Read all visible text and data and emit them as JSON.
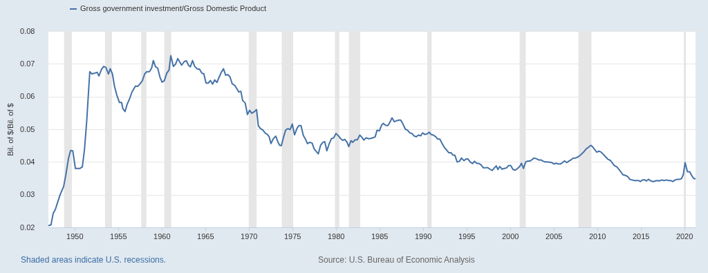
{
  "chart_data": {
    "type": "line",
    "ylabel": "Bil. of $/Bil. of $",
    "annotations": [
      "Shaded areas indicate U.S. recessions.",
      "Source: U.S. Bureau of Economic Analysis"
    ],
    "legend": "top left",
    "grid": "y",
    "line_style": "solid",
    "xlim": [
      1947,
      2021.3
    ],
    "xticks": [
      1950,
      1955,
      1960,
      1965,
      1970,
      1975,
      1980,
      1985,
      1990,
      1995,
      2000,
      2005,
      2010,
      2015,
      2020
    ],
    "ylim": [
      0.02,
      0.08
    ],
    "yticks": [
      0.02,
      0.03,
      0.04,
      0.05,
      0.06,
      0.07,
      0.08
    ],
    "bands": [
      {
        "axis": "x",
        "from": 1948.8,
        "to": 1949.7,
        "color": "#e6e6e6"
      },
      {
        "axis": "x",
        "from": 1953.5,
        "to": 1954.3,
        "color": "#e6e6e6"
      },
      {
        "axis": "x",
        "from": 1957.65,
        "to": 1958.25,
        "color": "#e6e6e6"
      },
      {
        "axis": "x",
        "from": 1960.3,
        "to": 1961.1,
        "color": "#e6e6e6"
      },
      {
        "axis": "x",
        "from": 1970.0,
        "to": 1970.9,
        "color": "#e6e6e6"
      },
      {
        "axis": "x",
        "from": 1973.8,
        "to": 1975.1,
        "color": "#e6e6e6"
      },
      {
        "axis": "x",
        "from": 1979.9,
        "to": 1980.4,
        "color": "#e6e6e6"
      },
      {
        "axis": "x",
        "from": 1981.5,
        "to": 1982.8,
        "color": "#e6e6e6"
      },
      {
        "axis": "x",
        "from": 1990.5,
        "to": 1991.0,
        "color": "#e6e6e6"
      },
      {
        "axis": "x",
        "from": 2001.1,
        "to": 2001.8,
        "color": "#e6e6e6"
      },
      {
        "axis": "x",
        "from": 2007.85,
        "to": 2009.35,
        "color": "#e6e6e6"
      },
      {
        "axis": "x",
        "from": 2019.95,
        "to": 2020.2,
        "color": "#e6e6e6"
      }
    ],
    "series": [
      {
        "name": "Gross government investment/Gross Domestic Product",
        "color": "#4572a7",
        "x": [
          1947.0,
          1947.3,
          1947.55,
          1947.8,
          1948.1,
          1948.35,
          1948.75,
          1949.0,
          1949.3,
          1949.55,
          1949.8,
          1950.1,
          1950.35,
          1950.6,
          1950.9,
          1951.15,
          1951.4,
          1951.75,
          1952.0,
          1952.35,
          1952.6,
          1952.8,
          1953.1,
          1953.35,
          1953.6,
          1953.9,
          1954.1,
          1954.35,
          1954.6,
          1954.85,
          1955.15,
          1955.4,
          1955.55,
          1955.8,
          1956.05,
          1956.35,
          1956.6,
          1957.0,
          1957.25,
          1957.5,
          1957.8,
          1958.05,
          1958.3,
          1958.6,
          1958.85,
          1959.05,
          1959.3,
          1959.55,
          1959.8,
          1960.05,
          1960.3,
          1960.6,
          1960.85,
          1961.05,
          1961.35,
          1961.6,
          1961.85,
          1962.1,
          1962.3,
          1962.6,
          1962.85,
          1963.1,
          1963.3,
          1963.55,
          1963.8,
          1964.1,
          1964.35,
          1964.6,
          1964.85,
          1965.1,
          1965.35,
          1965.6,
          1965.85,
          1966.1,
          1966.35,
          1966.6,
          1966.85,
          1967.1,
          1967.35,
          1967.6,
          1967.85,
          1968.1,
          1968.4,
          1968.65,
          1968.85,
          1969.1,
          1969.3,
          1969.6,
          1969.85,
          1970.1,
          1970.35,
          1970.6,
          1970.9,
          1971.1,
          1971.35,
          1971.6,
          1971.9,
          1972.15,
          1972.35,
          1972.55,
          1972.8,
          1973.1,
          1973.35,
          1973.55,
          1973.75,
          1974.0,
          1974.23,
          1974.5,
          1974.76,
          1975.0,
          1975.26,
          1975.53,
          1975.74,
          1976.0,
          1976.27,
          1976.53,
          1976.74,
          1977.0,
          1977.27,
          1977.51,
          1977.78,
          1977.99,
          1978.25,
          1978.52,
          1978.73,
          1978.97,
          1979.23,
          1979.49,
          1979.76,
          1980.02,
          1980.29,
          1980.55,
          1980.82,
          1981.03,
          1981.29,
          1981.48,
          1981.74,
          1981.95,
          1982.22,
          1982.48,
          1982.75,
          1983.01,
          1983.22,
          1983.49,
          1983.75,
          1984.01,
          1984.28,
          1984.52,
          1984.73,
          1985.0,
          1985.26,
          1985.45,
          1985.71,
          1985.97,
          1986.19,
          1986.45,
          1986.71,
          1986.98,
          1987.24,
          1987.45,
          1987.71,
          1987.98,
          1988.24,
          1988.48,
          1988.75,
          1988.96,
          1989.22,
          1989.49,
          1989.75,
          1989.96,
          1990.23,
          1990.49,
          1990.73,
          1990.94,
          1991.2,
          1991.47,
          1991.68,
          1991.94,
          1992.21,
          1992.47,
          1992.71,
          1992.98,
          1993.24,
          1993.45,
          1993.66,
          1993.93,
          1994.19,
          1994.43,
          1994.7,
          1994.96,
          1995.17,
          1995.43,
          1995.7,
          1995.91,
          1996.18,
          1996.44,
          1996.68,
          1996.94,
          1997.21,
          1997.42,
          1997.69,
          1997.95,
          1998.21,
          1998.42,
          1998.61,
          1998.82,
          1999.08,
          1999.34,
          1999.61,
          1999.82,
          2000.08,
          2000.34,
          2000.6,
          2000.87,
          2001.13,
          2001.31,
          2001.55,
          2001.79,
          2002.05,
          2002.31,
          2002.52,
          2002.76,
          2003.02,
          2003.29,
          2003.55,
          2003.76,
          2004.02,
          2004.28,
          2004.55,
          2004.81,
          2005.02,
          2005.28,
          2005.55,
          2005.81,
          2006.02,
          2006.25,
          2006.52,
          2006.78,
          2006.99,
          2007.25,
          2007.52,
          2007.78,
          2008.04,
          2008.28,
          2008.54,
          2008.75,
          2009.01,
          2009.28,
          2009.49,
          2009.75,
          2009.96,
          2010.22,
          2010.46,
          2010.72,
          2010.99,
          2011.25,
          2011.51,
          2011.72,
          2011.98,
          2012.25,
          2012.51,
          2012.77,
          2012.96,
          2013.22,
          2013.48,
          2013.75,
          2014.01,
          2014.27,
          2014.53,
          2014.8,
          2014.95,
          2015.22,
          2015.48,
          2015.66,
          2015.9,
          2016.16,
          2016.43,
          2016.69,
          2016.95,
          2017.16,
          2017.42,
          2017.69,
          2017.95,
          2018.21,
          2018.48,
          2018.69,
          2018.95,
          2019.21,
          2019.47,
          2019.68,
          2019.89,
          2020.1,
          2020.37,
          2020.63,
          2020.89,
          2021.1,
          2021.3
        ],
        "values": [
          0.0205,
          0.0208,
          0.0243,
          0.0255,
          0.028,
          0.03,
          0.0325,
          0.036,
          0.041,
          0.0435,
          0.0434,
          0.038,
          0.038,
          0.038,
          0.0385,
          0.044,
          0.0525,
          0.0676,
          0.0669,
          0.0672,
          0.0674,
          0.0663,
          0.0683,
          0.0692,
          0.0689,
          0.0669,
          0.0685,
          0.0669,
          0.063,
          0.0605,
          0.0582,
          0.0582,
          0.0563,
          0.0554,
          0.0577,
          0.0595,
          0.0614,
          0.0632,
          0.0631,
          0.0638,
          0.0649,
          0.0669,
          0.0676,
          0.0676,
          0.0687,
          0.071,
          0.0691,
          0.0687,
          0.066,
          0.0644,
          0.0648,
          0.0672,
          0.0681,
          0.0725,
          0.0692,
          0.0699,
          0.0716,
          0.0705,
          0.0696,
          0.0707,
          0.0709,
          0.0695,
          0.0691,
          0.071,
          0.0692,
          0.0684,
          0.0684,
          0.0672,
          0.0669,
          0.0641,
          0.0641,
          0.0649,
          0.0638,
          0.0651,
          0.0643,
          0.0659,
          0.0674,
          0.0685,
          0.0665,
          0.0667,
          0.066,
          0.0639,
          0.0634,
          0.0623,
          0.0614,
          0.0616,
          0.0588,
          0.058,
          0.0545,
          0.0558,
          0.0549,
          0.0553,
          0.056,
          0.0511,
          0.0502,
          0.0498,
          0.0488,
          0.0484,
          0.0477,
          0.0456,
          0.047,
          0.0479,
          0.0461,
          0.0451,
          0.045,
          0.0476,
          0.0497,
          0.0502,
          0.0499,
          0.0516,
          0.0483,
          0.0502,
          0.0511,
          0.0511,
          0.0481,
          0.0469,
          0.0456,
          0.046,
          0.0458,
          0.044,
          0.0431,
          0.0425,
          0.0451,
          0.046,
          0.0462,
          0.0434,
          0.0455,
          0.0471,
          0.0474,
          0.0487,
          0.048,
          0.0471,
          0.0466,
          0.0469,
          0.046,
          0.0447,
          0.0465,
          0.046,
          0.0468,
          0.0468,
          0.0482,
          0.0475,
          0.0467,
          0.0474,
          0.0471,
          0.0472,
          0.0474,
          0.0477,
          0.0497,
          0.0495,
          0.0513,
          0.0518,
          0.0512,
          0.0511,
          0.052,
          0.0535,
          0.0523,
          0.0526,
          0.0528,
          0.0528,
          0.0516,
          0.05,
          0.0497,
          0.0489,
          0.0487,
          0.048,
          0.0477,
          0.0482,
          0.048,
          0.0489,
          0.0484,
          0.0486,
          0.0491,
          0.0484,
          0.0482,
          0.0477,
          0.047,
          0.047,
          0.0456,
          0.0444,
          0.0437,
          0.0428,
          0.0428,
          0.0421,
          0.0421,
          0.04,
          0.0402,
          0.0412,
          0.0404,
          0.0409,
          0.0409,
          0.04,
          0.0395,
          0.0402,
          0.0396,
          0.0395,
          0.0391,
          0.0382,
          0.0382,
          0.0383,
          0.0378,
          0.0374,
          0.0382,
          0.0388,
          0.0377,
          0.0386,
          0.0378,
          0.038,
          0.0382,
          0.0389,
          0.0389,
          0.0377,
          0.0375,
          0.038,
          0.0387,
          0.0396,
          0.038,
          0.04,
          0.0403,
          0.0403,
          0.0407,
          0.0412,
          0.041,
          0.0406,
          0.0406,
          0.0403,
          0.04,
          0.04,
          0.0399,
          0.0398,
          0.0394,
          0.0396,
          0.0394,
          0.0394,
          0.0398,
          0.0403,
          0.0398,
          0.0403,
          0.0406,
          0.0412,
          0.0412,
          0.0415,
          0.042,
          0.0426,
          0.0433,
          0.044,
          0.0445,
          0.0451,
          0.0446,
          0.0437,
          0.043,
          0.0433,
          0.043,
          0.0423,
          0.0415,
          0.0408,
          0.0405,
          0.0398,
          0.0389,
          0.0385,
          0.0377,
          0.0368,
          0.0361,
          0.0359,
          0.0356,
          0.0347,
          0.0345,
          0.0343,
          0.0343,
          0.0343,
          0.034,
          0.0345,
          0.0345,
          0.0342,
          0.0347,
          0.0342,
          0.034,
          0.0342,
          0.0343,
          0.0342,
          0.0345,
          0.0343,
          0.0345,
          0.0343,
          0.0343,
          0.034,
          0.0345,
          0.0347,
          0.0347,
          0.0349,
          0.0361,
          0.0398,
          0.037,
          0.037,
          0.0357,
          0.0349,
          0.0349
        ]
      }
    ]
  }
}
